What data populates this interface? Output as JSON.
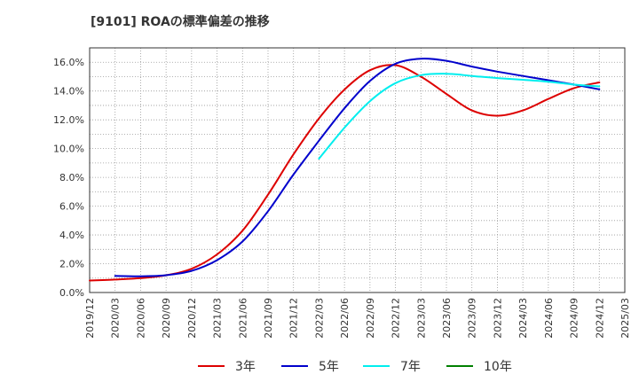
{
  "chart_data": {
    "type": "line",
    "title": "[9101]  ROAの標準偏差の推移",
    "xlabel": "",
    "ylabel": "",
    "ylim": [
      0,
      0.17
    ],
    "x_ticks": [
      "2019/12",
      "2020/03",
      "2020/06",
      "2020/09",
      "2020/12",
      "2021/03",
      "2021/06",
      "2021/09",
      "2021/12",
      "2022/03",
      "2022/06",
      "2022/09",
      "2022/12",
      "2023/03",
      "2023/06",
      "2023/09",
      "2023/12",
      "2024/03",
      "2024/06",
      "2024/09",
      "2024/12",
      "2025/03"
    ],
    "y_ticks": [
      "0.0%",
      "2.0%",
      "4.0%",
      "6.0%",
      "8.0%",
      "10.0%",
      "12.0%",
      "14.0%",
      "16.0%"
    ],
    "grid": true,
    "legend_position": "bottom",
    "series": [
      {
        "name": "3年",
        "color": "#dd0000",
        "x": [
          "2019/12",
          "2020/03",
          "2020/06",
          "2020/09",
          "2020/12",
          "2021/03",
          "2021/06",
          "2021/09",
          "2021/12",
          "2022/03",
          "2022/06",
          "2022/09",
          "2022/12",
          "2023/03",
          "2023/06",
          "2023/09",
          "2023/12",
          "2024/03",
          "2024/06",
          "2024/09",
          "2024/12"
        ],
        "values": [
          0.0083,
          0.009,
          0.01,
          0.012,
          0.0165,
          0.0265,
          0.043,
          0.068,
          0.096,
          0.121,
          0.141,
          0.1545,
          0.158,
          0.15,
          0.138,
          0.1265,
          0.1228,
          0.1265,
          0.1345,
          0.142,
          0.146
        ]
      },
      {
        "name": "5年",
        "color": "#0000cc",
        "x": [
          "2020/03",
          "2020/06",
          "2020/09",
          "2020/12",
          "2021/03",
          "2021/06",
          "2021/09",
          "2021/12",
          "2022/03",
          "2022/06",
          "2022/09",
          "2022/12",
          "2023/03",
          "2023/06",
          "2023/09",
          "2023/12",
          "2024/03",
          "2024/06",
          "2024/09",
          "2024/12"
        ],
        "values": [
          0.0115,
          0.0113,
          0.012,
          0.015,
          0.0225,
          0.0355,
          0.0565,
          0.082,
          0.1055,
          0.128,
          0.147,
          0.159,
          0.1625,
          0.161,
          0.157,
          0.1535,
          0.1505,
          0.1475,
          0.1445,
          0.1412
        ]
      },
      {
        "name": "7年",
        "color": "#00eeee",
        "x": [
          "2022/03",
          "2022/06",
          "2022/09",
          "2022/12",
          "2023/03",
          "2023/06",
          "2023/09",
          "2023/12",
          "2024/03",
          "2024/06",
          "2024/09",
          "2024/12"
        ],
        "values": [
          0.093,
          0.1145,
          0.133,
          0.1455,
          0.151,
          0.152,
          0.1505,
          0.149,
          0.1478,
          0.1465,
          0.1445,
          0.1432
        ]
      },
      {
        "name": "10年",
        "color": "#008000",
        "x": [],
        "values": []
      }
    ]
  }
}
